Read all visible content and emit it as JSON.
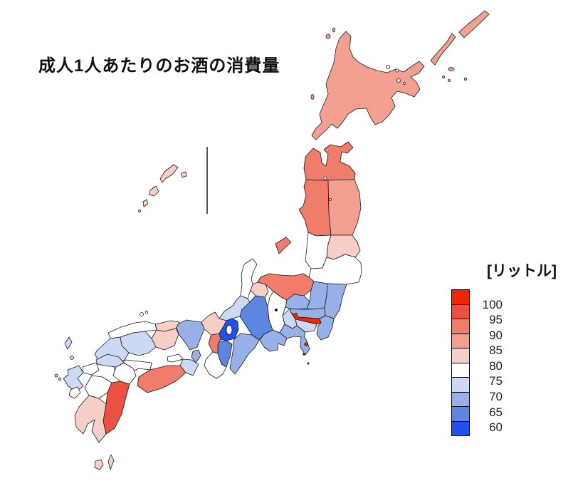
{
  "title": "成人1人あたりのお酒の消費量",
  "legend": {
    "unit_label": "[リットル]",
    "tick_labels": [
      "100",
      "95",
      "90",
      "85",
      "80",
      "75",
      "70",
      "65",
      "60"
    ],
    "colors": [
      "#EE2506",
      "#EB5040",
      "#EF7D6A",
      "#F3A090",
      "#F8CFC6",
      "#FFFFFF",
      "#CBD9F4",
      "#97B0E8",
      "#5E85DF",
      "#2050EE"
    ]
  },
  "chart_data": {
    "type": "choropleth",
    "title": "成人1人あたりのお酒の消費量",
    "unit": "リットル",
    "legend_position": "right",
    "scale_breaks": [
      100,
      95,
      90,
      85,
      80,
      75,
      70,
      65,
      60
    ],
    "buckets": [
      {
        "label": "100+",
        "color": "#EE2506"
      },
      {
        "label": "95-100",
        "color": "#EB5040"
      },
      {
        "label": "90-95",
        "color": "#EF7D6A"
      },
      {
        "label": "85-90",
        "color": "#F3A090"
      },
      {
        "label": "80-85",
        "color": "#F8CFC6"
      },
      {
        "label": "75-80",
        "color": "#FFFFFF"
      },
      {
        "label": "70-75",
        "color": "#CBD9F4"
      },
      {
        "label": "65-70",
        "color": "#97B0E8"
      },
      {
        "label": "60-65",
        "color": "#5E85DF"
      },
      {
        "label": "<60",
        "color": "#2050EE"
      }
    ],
    "regions": [
      {
        "key": "hokkaido",
        "name": "北海道",
        "range": "85-90",
        "color": "#F3A090"
      },
      {
        "key": "aomori",
        "name": "青森",
        "range": "90-95",
        "color": "#EF7D6A"
      },
      {
        "key": "iwate",
        "name": "岩手",
        "range": "85-90",
        "color": "#F3A090"
      },
      {
        "key": "akita",
        "name": "秋田",
        "range": "90-95",
        "color": "#EF7D6A"
      },
      {
        "key": "miyagi",
        "name": "宮城",
        "range": "80-85",
        "color": "#F8CFC6"
      },
      {
        "key": "yamagata",
        "name": "山形",
        "range": "75-80",
        "color": "#FFFFFF"
      },
      {
        "key": "fukushima",
        "name": "福島",
        "range": "75-80",
        "color": "#FFFFFF"
      },
      {
        "key": "ibaraki",
        "name": "茨城",
        "range": "65-70",
        "color": "#97B0E8"
      },
      {
        "key": "tochigi",
        "name": "栃木",
        "range": "65-70",
        "color": "#97B0E8"
      },
      {
        "key": "gunma",
        "name": "群馬",
        "range": "65-70",
        "color": "#97B0E8"
      },
      {
        "key": "saitama",
        "name": "埼玉",
        "range": "65-70",
        "color": "#97B0E8"
      },
      {
        "key": "chiba",
        "name": "千葉",
        "range": "65-70",
        "color": "#97B0E8"
      },
      {
        "key": "tokyo",
        "name": "東京",
        "range": "100+",
        "color": "#EE2506"
      },
      {
        "key": "kanagawa",
        "name": "神奈川",
        "range": "70-75",
        "color": "#CBD9F4"
      },
      {
        "key": "niigata",
        "name": "新潟",
        "range": "90-95",
        "color": "#EF7D6A"
      },
      {
        "key": "toyama",
        "name": "富山",
        "range": "80-85",
        "color": "#F8CFC6"
      },
      {
        "key": "ishikawa",
        "name": "石川",
        "range": "75-80",
        "color": "#FFFFFF"
      },
      {
        "key": "fukui",
        "name": "福井",
        "range": "70-75",
        "color": "#CBD9F4"
      },
      {
        "key": "yamanashi",
        "name": "山梨",
        "range": "70-75",
        "color": "#CBD9F4"
      },
      {
        "key": "nagano",
        "name": "長野",
        "range": "75-80",
        "color": "#FFFFFF"
      },
      {
        "key": "gifu",
        "name": "岐阜",
        "range": "60-65",
        "color": "#5E85DF"
      },
      {
        "key": "shizuoka",
        "name": "静岡",
        "range": "65-70",
        "color": "#97B0E8"
      },
      {
        "key": "aichi",
        "name": "愛知",
        "range": "65-70",
        "color": "#97B0E8"
      },
      {
        "key": "mie",
        "name": "三重",
        "range": "65-70",
        "color": "#97B0E8"
      },
      {
        "key": "shiga",
        "name": "滋賀",
        "range": "<60",
        "color": "#2050EE"
      },
      {
        "key": "kyoto",
        "name": "京都",
        "range": "80-85",
        "color": "#F8CFC6"
      },
      {
        "key": "osaka",
        "name": "大阪",
        "range": "90-95",
        "color": "#EF7D6A"
      },
      {
        "key": "hyogo",
        "name": "兵庫",
        "range": "65-70",
        "color": "#97B0E8"
      },
      {
        "key": "nara",
        "name": "奈良",
        "range": "60-65",
        "color": "#5E85DF"
      },
      {
        "key": "wakayama",
        "name": "和歌山",
        "range": "75-80",
        "color": "#FFFFFF"
      },
      {
        "key": "tottori",
        "name": "鳥取",
        "range": "80-85",
        "color": "#F8CFC6"
      },
      {
        "key": "shimane",
        "name": "島根",
        "range": "75-80",
        "color": "#FFFFFF"
      },
      {
        "key": "okayama",
        "name": "岡山",
        "range": "80-85",
        "color": "#F8CFC6"
      },
      {
        "key": "hiroshima",
        "name": "広島",
        "range": "70-75",
        "color": "#CBD9F4"
      },
      {
        "key": "yamaguchi",
        "name": "山口",
        "range": "70-75",
        "color": "#CBD9F4"
      },
      {
        "key": "tokushima",
        "name": "徳島",
        "range": "70-75",
        "color": "#CBD9F4"
      },
      {
        "key": "kagawa",
        "name": "香川",
        "range": "75-80",
        "color": "#FFFFFF"
      },
      {
        "key": "ehime",
        "name": "愛媛",
        "range": "75-80",
        "color": "#FFFFFF"
      },
      {
        "key": "kochi",
        "name": "高知",
        "range": "90-95",
        "color": "#EF7D6A"
      },
      {
        "key": "fukuoka",
        "name": "福岡",
        "range": "70-75",
        "color": "#CBD9F4"
      },
      {
        "key": "saga",
        "name": "佐賀",
        "range": "75-80",
        "color": "#FFFFFF"
      },
      {
        "key": "nagasaki",
        "name": "長崎",
        "range": "70-75",
        "color": "#CBD9F4"
      },
      {
        "key": "kumamoto",
        "name": "熊本",
        "range": "75-80",
        "color": "#FFFFFF"
      },
      {
        "key": "oita",
        "name": "大分",
        "range": "75-80",
        "color": "#FFFFFF"
      },
      {
        "key": "miyazaki",
        "name": "宮崎",
        "range": "95-100",
        "color": "#EB5040"
      },
      {
        "key": "kagoshima",
        "name": "鹿児島",
        "range": "80-85",
        "color": "#F8CFC6"
      },
      {
        "key": "okinawa",
        "name": "沖縄",
        "range": "80-85",
        "color": "#F8CFC6"
      }
    ]
  }
}
